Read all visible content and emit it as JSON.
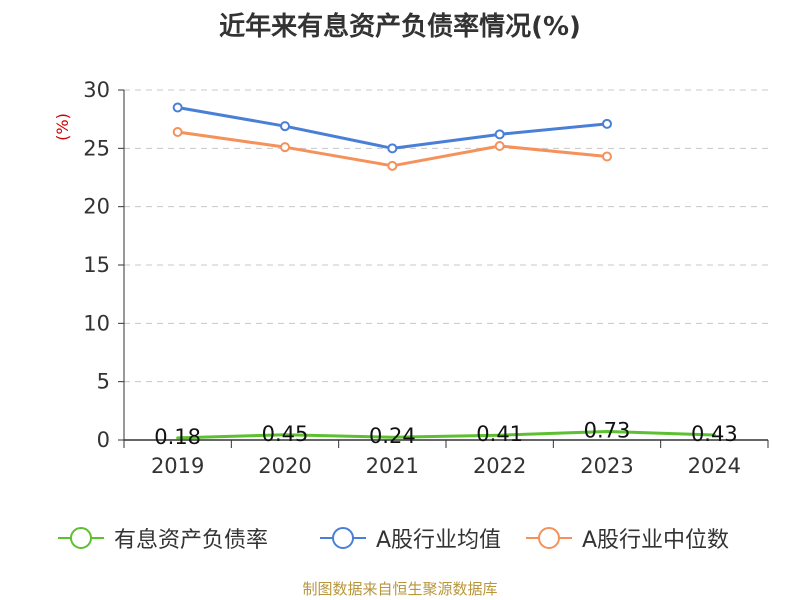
{
  "title": "近年来有息资产负债率情况(%)",
  "source": "制图数据来自恒生聚源数据库",
  "chart_data": {
    "type": "line",
    "title": "近年来有息资产负债率情况(%)",
    "ylabel": "(%)",
    "xlabel": "",
    "categories": [
      "2019",
      "2020",
      "2021",
      "2022",
      "2023",
      "2024"
    ],
    "ylim": [
      0,
      30
    ],
    "yticks": [
      0,
      5,
      10,
      15,
      20,
      25,
      30
    ],
    "grid": true,
    "legend_position": "bottom",
    "series": [
      {
        "name": "有息资产负债率",
        "color": "#5cc030",
        "values": [
          0.18,
          0.45,
          0.24,
          0.41,
          0.73,
          0.43
        ],
        "labels": [
          "0.18",
          "0.45",
          "0.24",
          "0.41",
          "0.73",
          "0.43"
        ]
      },
      {
        "name": "A股行业均值",
        "color": "#4a7fd8",
        "values": [
          28.5,
          26.9,
          25.0,
          26.2,
          27.1,
          null
        ]
      },
      {
        "name": "A股行业中位数",
        "color": "#f5915a",
        "values": [
          26.4,
          25.1,
          23.5,
          25.2,
          24.3,
          null
        ]
      }
    ]
  }
}
